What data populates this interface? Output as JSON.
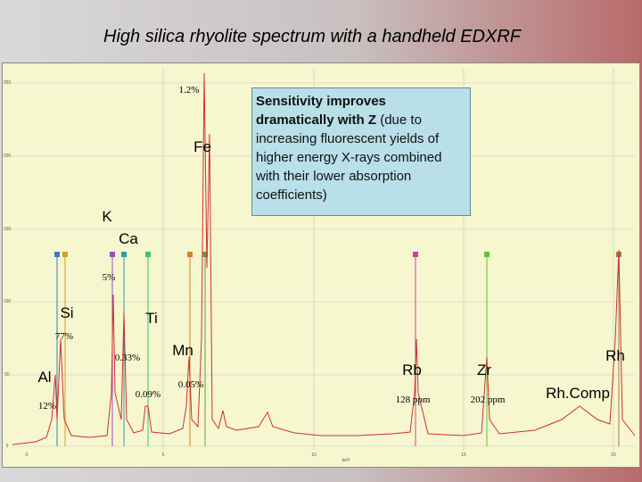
{
  "header": {
    "title": "High silica rhyolite spectrum with a handheld EDXRF"
  },
  "callout": {
    "lead": "Sensitivity improves dramatically with Z",
    "rest": " (due to increasing fluorescent yields of higher energy X-rays combined with their lower absorption coefficients)"
  },
  "labels": [
    "1.2%",
    "Fe",
    "K",
    "Ca",
    "5%",
    "Si",
    "Ti",
    "77%",
    "0.33%",
    "Mn",
    "Al",
    "0.09%",
    "0.05%",
    "12%",
    "Rb",
    "Zr",
    "Rh",
    "128 ppm",
    "202 ppm",
    "Rh.Comp"
  ],
  "axis": {
    "y_ticks": [
      "250",
      "200",
      "150",
      "100",
      "50",
      "0"
    ],
    "x_ticks": [
      "0",
      "5",
      "10",
      "15",
      "20"
    ],
    "x_label": "keV"
  }
}
